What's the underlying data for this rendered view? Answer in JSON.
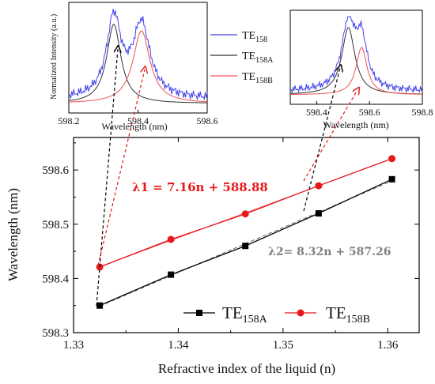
{
  "chart_data": [
    {
      "type": "line",
      "xlabel": "Refractive index of the liquid (n)",
      "ylabel": "Wavelength (nm)",
      "xlim": [
        1.33,
        1.363
      ],
      "ylim": [
        598.3,
        598.66
      ],
      "xticks": [
        1.33,
        1.34,
        1.35,
        1.36
      ],
      "xtick_labels": [
        "1.33",
        "1.34",
        "1.35",
        "1.36"
      ],
      "yticks": [
        598.3,
        598.4,
        598.5,
        598.6
      ],
      "ytick_labels": [
        "598.3",
        "598.4",
        "598.5",
        "598.6"
      ],
      "grid": false,
      "legend_position": "bottom-right",
      "series": [
        {
          "name_main": "TE",
          "name_sub": "158A",
          "color": "#000000",
          "marker": "square",
          "x": [
            1.3325,
            1.3393,
            1.3464,
            1.3534,
            1.3604
          ],
          "values": [
            598.35,
            598.407,
            598.46,
            598.52,
            598.583
          ]
        },
        {
          "name_main": "TE",
          "name_sub": "158B",
          "color": "#e8191c",
          "marker": "circle",
          "x": [
            1.3325,
            1.3393,
            1.3464,
            1.3534,
            1.3604
          ],
          "values": [
            598.421,
            598.472,
            598.519,
            598.571,
            598.621
          ]
        }
      ],
      "annotations": [
        {
          "text": "λ1 = 7.16n + 588.88",
          "color": "#e8191c"
        },
        {
          "text": "λ2= 8.32n + 587.26",
          "color": "#7f7f7f"
        }
      ]
    },
    {
      "type": "line",
      "position": "inset-left",
      "xlabel": "Wavelength (nm)",
      "ylabel": "Normalized Intensity (a.u.)",
      "xlim": [
        598.2,
        598.6
      ],
      "xticks": [
        598.2,
        598.4,
        598.6
      ],
      "xtick_labels": [
        "598.2",
        "598.4",
        "598.6"
      ],
      "series": [
        {
          "name_main": "TE",
          "name_sub": "158",
          "color": "#4444ee",
          "peaks": [
            598.33,
            598.41
          ]
        },
        {
          "name_main": "TE",
          "name_sub": "158A",
          "color": "#333333",
          "peak": 598.33
        },
        {
          "name_main": "TE",
          "name_sub": "158B",
          "color": "#f05050",
          "peak": 598.41
        }
      ]
    },
    {
      "type": "line",
      "position": "inset-right",
      "xlabel": "Wavelength (nm)",
      "xlim": [
        598.3,
        598.8
      ],
      "xticks": [
        598.4,
        598.6,
        598.8
      ],
      "xtick_labels": [
        "598.4",
        "598.6",
        "598.8"
      ],
      "series": [
        {
          "name_main": "TE",
          "name_sub": "158",
          "color": "#4444ee",
          "peaks": [
            598.52,
            598.57
          ]
        },
        {
          "name_main": "TE",
          "name_sub": "158A",
          "color": "#333333",
          "peak": 598.52
        },
        {
          "name_main": "TE",
          "name_sub": "158B",
          "color": "#f05050",
          "peak": 598.57
        }
      ]
    }
  ]
}
